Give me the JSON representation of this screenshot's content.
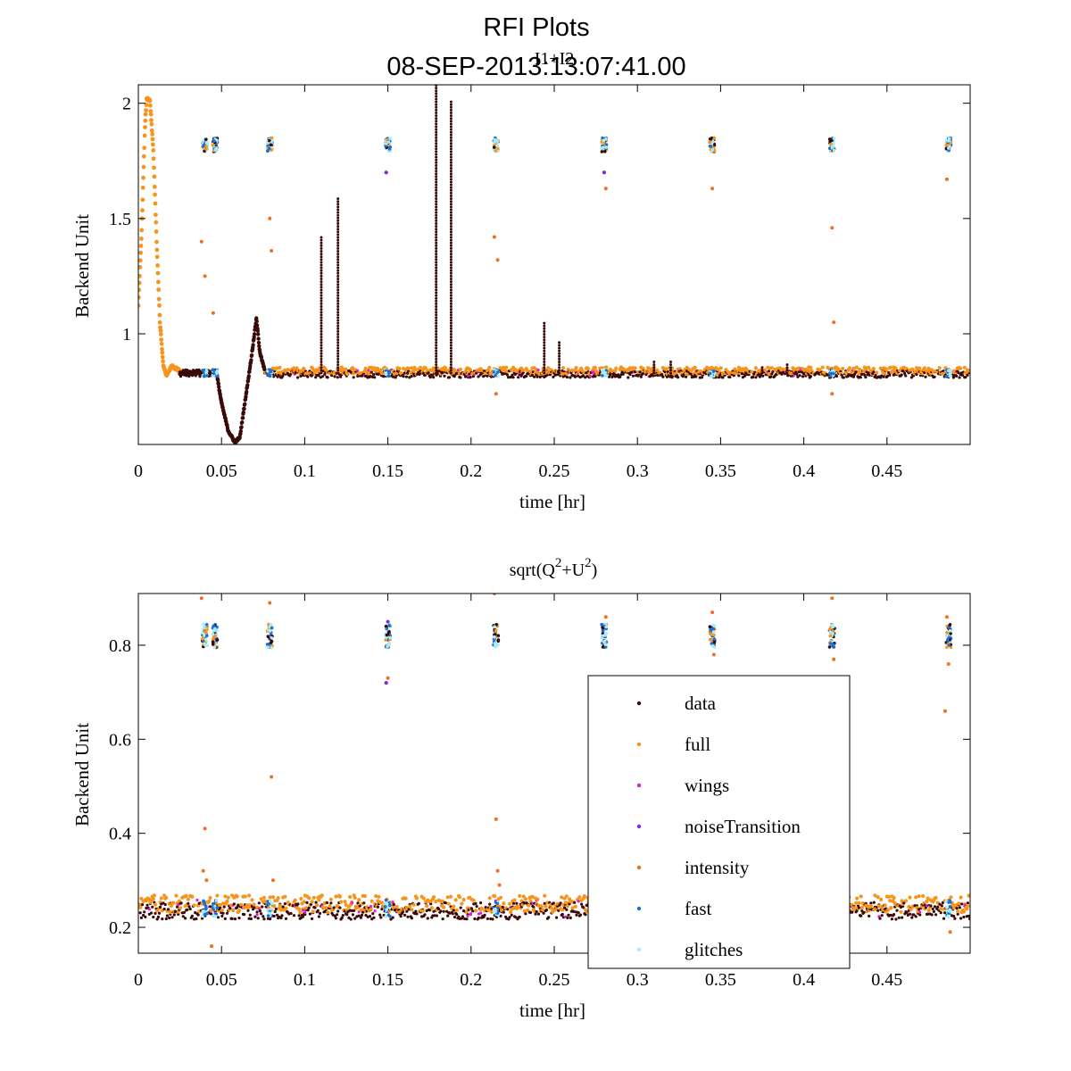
{
  "figure": {
    "title_line1": "RFI Plots",
    "title_line2": "08-SEP-2013:13:07:41.00"
  },
  "legend": {
    "placement": "lower-right of bottom panel",
    "entries": [
      {
        "name": "data",
        "color": "#3a0a06"
      },
      {
        "name": "full",
        "color": "#f7941d"
      },
      {
        "name": "wings",
        "color": "#e41ad9"
      },
      {
        "name": "noiseTransition",
        "color": "#7a2be2"
      },
      {
        "name": "intensity",
        "color": "#f26f22"
      },
      {
        "name": "fast",
        "color": "#1f6fd1"
      },
      {
        "name": "glitches",
        "color": "#a8ecfa"
      }
    ]
  },
  "chart_data": [
    {
      "type": "scatter",
      "title": "I1+I2",
      "xlabel": "time [hr]",
      "ylabel": "Backend Unit",
      "xlim": [
        0,
        0.5
      ],
      "ylim": [
        0.52,
        2.08
      ],
      "xticks": [
        0,
        0.05,
        0.1,
        0.15,
        0.2,
        0.25,
        0.3,
        0.35,
        0.4,
        0.45
      ],
      "xtick_labels": [
        "0",
        "0.05",
        "0.1",
        "0.15",
        "0.2",
        "0.25",
        "0.3",
        "0.35",
        "0.4",
        "0.45"
      ],
      "yticks": [
        1,
        1.5,
        2
      ],
      "ytick_labels": [
        "1",
        "1.5",
        "2"
      ],
      "grid": false,
      "baseline": 0.83,
      "orange_curve": [
        [
          0,
          1.12
        ],
        [
          0.002,
          1.45
        ],
        [
          0.004,
          1.9
        ],
        [
          0.005,
          2.02
        ],
        [
          0.007,
          2.01
        ],
        [
          0.009,
          1.8
        ],
        [
          0.011,
          1.4
        ],
        [
          0.013,
          1.05
        ],
        [
          0.015,
          0.86
        ],
        [
          0.017,
          0.82
        ],
        [
          0.02,
          0.86
        ],
        [
          0.025,
          0.84
        ]
      ],
      "dip_curve": [
        [
          0.025,
          0.83
        ],
        [
          0.047,
          0.83
        ],
        [
          0.05,
          0.7
        ],
        [
          0.054,
          0.58
        ],
        [
          0.058,
          0.53
        ],
        [
          0.061,
          0.55
        ],
        [
          0.064,
          0.7
        ],
        [
          0.068,
          0.9
        ],
        [
          0.071,
          1.07
        ],
        [
          0.073,
          0.92
        ],
        [
          0.076,
          0.84
        ]
      ],
      "cal_times": [
        0.04,
        0.046,
        0.079,
        0.15,
        0.215,
        0.28,
        0.345,
        0.417,
        0.487
      ],
      "cal_level": 1.82,
      "spikes": [
        [
          0.11,
          1.42
        ],
        [
          0.12,
          1.59
        ],
        [
          0.179,
          2.08
        ],
        [
          0.188,
          2.01
        ],
        [
          0.244,
          1.05
        ],
        [
          0.253,
          0.97
        ],
        [
          0.31,
          0.88
        ],
        [
          0.32,
          0.88
        ],
        [
          0.375,
          0.86
        ],
        [
          0.39,
          0.87
        ]
      ],
      "outliers": [
        [
          0.038,
          1.4
        ],
        [
          0.04,
          1.25
        ],
        [
          0.045,
          1.09
        ],
        [
          0.079,
          1.5
        ],
        [
          0.08,
          1.36
        ],
        [
          0.149,
          1.7
        ],
        [
          0.214,
          1.42
        ],
        [
          0.216,
          1.32
        ],
        [
          0.28,
          1.7
        ],
        [
          0.281,
          1.63
        ],
        [
          0.345,
          1.63
        ],
        [
          0.417,
          1.46
        ],
        [
          0.418,
          1.05
        ],
        [
          0.486,
          1.67
        ],
        [
          0.417,
          0.74
        ],
        [
          0.215,
          0.74
        ]
      ]
    },
    {
      "type": "scatter",
      "title_base": "sqrt(Q",
      "title_sup1": "2",
      "title_mid": "+U",
      "title_sup2": "2",
      "title_end": ")",
      "xlabel": "time [hr]",
      "ylabel": "Backend Unit",
      "xlim": [
        0,
        0.5
      ],
      "ylim": [
        0.145,
        0.91
      ],
      "xticks": [
        0,
        0.05,
        0.1,
        0.15,
        0.2,
        0.25,
        0.3,
        0.35,
        0.4,
        0.45
      ],
      "xtick_labels": [
        "0",
        "0.05",
        "0.1",
        "0.15",
        "0.2",
        "0.25",
        "0.3",
        "0.35",
        "0.4",
        "0.45"
      ],
      "yticks": [
        0.2,
        0.4,
        0.6,
        0.8
      ],
      "ytick_labels": [
        "0.2",
        "0.4",
        "0.6",
        "0.8"
      ],
      "grid": false,
      "baseline": 0.24,
      "cal_times": [
        0.04,
        0.046,
        0.079,
        0.15,
        0.215,
        0.28,
        0.345,
        0.417,
        0.487
      ],
      "cal_level": 0.82,
      "outliers": [
        [
          0.038,
          0.9
        ],
        [
          0.04,
          0.41
        ],
        [
          0.039,
          0.32
        ],
        [
          0.041,
          0.3
        ],
        [
          0.079,
          0.89
        ],
        [
          0.08,
          0.52
        ],
        [
          0.081,
          0.3
        ],
        [
          0.15,
          0.73
        ],
        [
          0.149,
          0.72
        ],
        [
          0.214,
          0.91
        ],
        [
          0.215,
          0.43
        ],
        [
          0.216,
          0.32
        ],
        [
          0.217,
          0.29
        ],
        [
          0.281,
          0.86
        ],
        [
          0.345,
          0.87
        ],
        [
          0.346,
          0.78
        ],
        [
          0.417,
          0.9
        ],
        [
          0.418,
          0.77
        ],
        [
          0.486,
          0.86
        ],
        [
          0.487,
          0.76
        ],
        [
          0.485,
          0.66
        ],
        [
          0.044,
          0.16
        ],
        [
          0.488,
          0.19
        ]
      ]
    }
  ]
}
